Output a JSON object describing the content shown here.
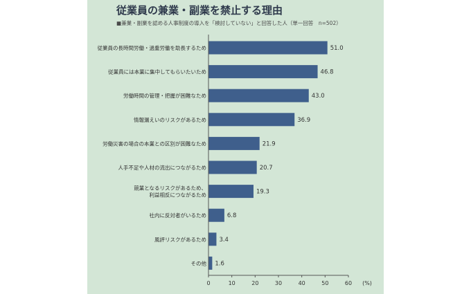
{
  "colors": {
    "panel_bg": "#d3e6d6",
    "bar": "#3f5f8c",
    "axis": "#555555",
    "title": "#2f3a4c"
  },
  "title": "従業員の兼業・副業を禁止する理由",
  "subtitle": "■兼業・副業を認める人事制度の導入を「検討していない」と回答した人（単一回答　n=502）",
  "chart_data": {
    "type": "bar",
    "orientation": "horizontal",
    "title": "従業員の兼業・副業を禁止する理由",
    "subtitle": "■兼業・副業を認める人事制度の導入を「検討していない」と回答した人（単一回答　n=502）",
    "categories": [
      [
        "従業員の長時間労働・過重労働を助長するため"
      ],
      [
        "従業員には本業に集中してもらいたいため"
      ],
      [
        "労働時間の管理・把握が困難なため"
      ],
      [
        "情報漏えいのリスクがあるため"
      ],
      [
        "労働災害の場合の本業との区別が困難なため"
      ],
      [
        "人手不足や人材の流出につながるため"
      ],
      [
        "競業となるリスクがあるため、",
        "利益相反につながるため"
      ],
      [
        "社内に反対者がいるため"
      ],
      [
        "風評リスクがあるため"
      ],
      [
        "その他"
      ]
    ],
    "values": [
      51.0,
      46.8,
      43.0,
      36.9,
      21.9,
      20.7,
      19.3,
      6.8,
      3.4,
      1.6
    ],
    "value_labels": [
      "51.0",
      "46.8",
      "43.0",
      "36.9",
      "21.9",
      "20.7",
      "19.3",
      "6.8",
      "3.4",
      "1.6"
    ],
    "xlim": [
      0,
      60
    ],
    "xticks": [
      "0",
      "10",
      "20",
      "30",
      "40",
      "50",
      "60"
    ],
    "xunit": "(%)",
    "grid": false
  }
}
